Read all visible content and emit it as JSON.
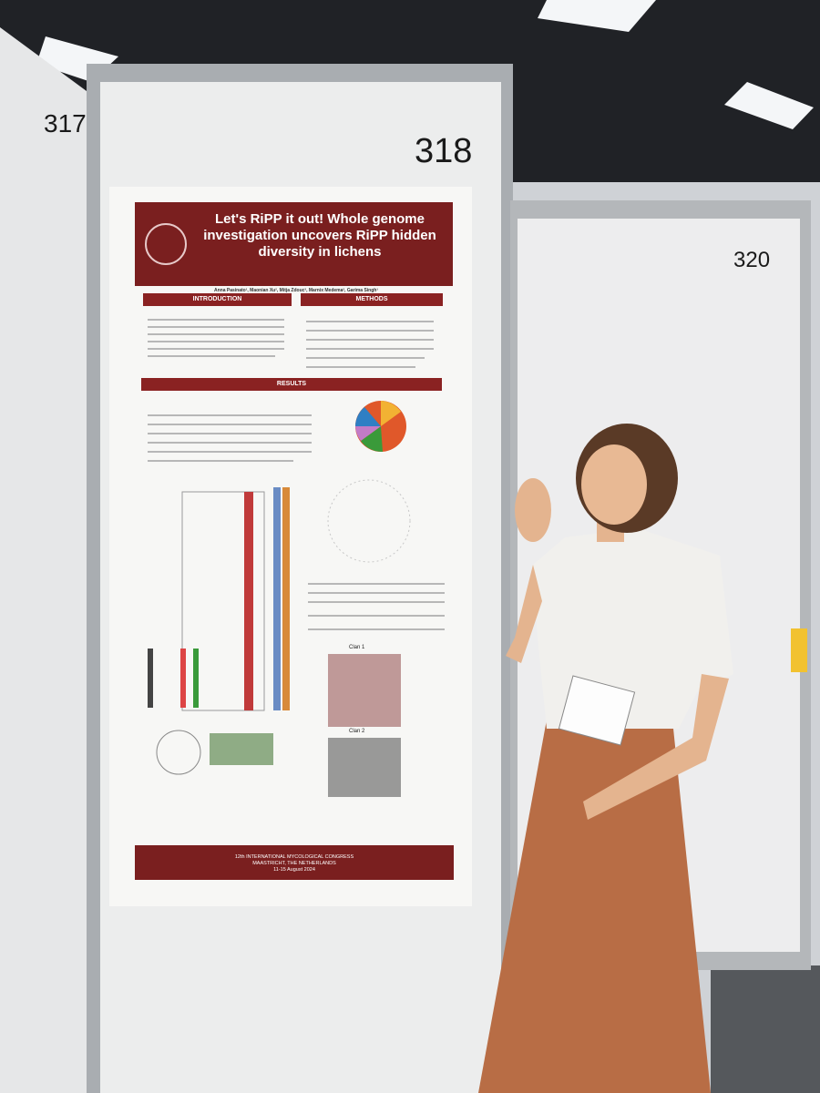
{
  "booths": [
    {
      "number": "317"
    },
    {
      "number": "318"
    },
    {
      "number": "320"
    }
  ],
  "poster": {
    "title": "Let's RiPP it out! Whole genome investigation uncovers RiPP hidden diversity in lichens",
    "authors": "Anna Pasinato¹, Maonian Xu², Mitja Zdouc³, Marnix Medema³, Garima Singh¹",
    "sections": [
      "INTRODUCTION",
      "METHODS",
      "RESULTS"
    ],
    "figure_labels": [
      "Clan 1",
      "Clan 2"
    ],
    "footer": [
      "12th INTERNATIONAL MYCOLOGICAL CONGRESS",
      "MAASTRICHT, THE NETHERLANDS",
      "11-15 August 2024"
    ]
  }
}
